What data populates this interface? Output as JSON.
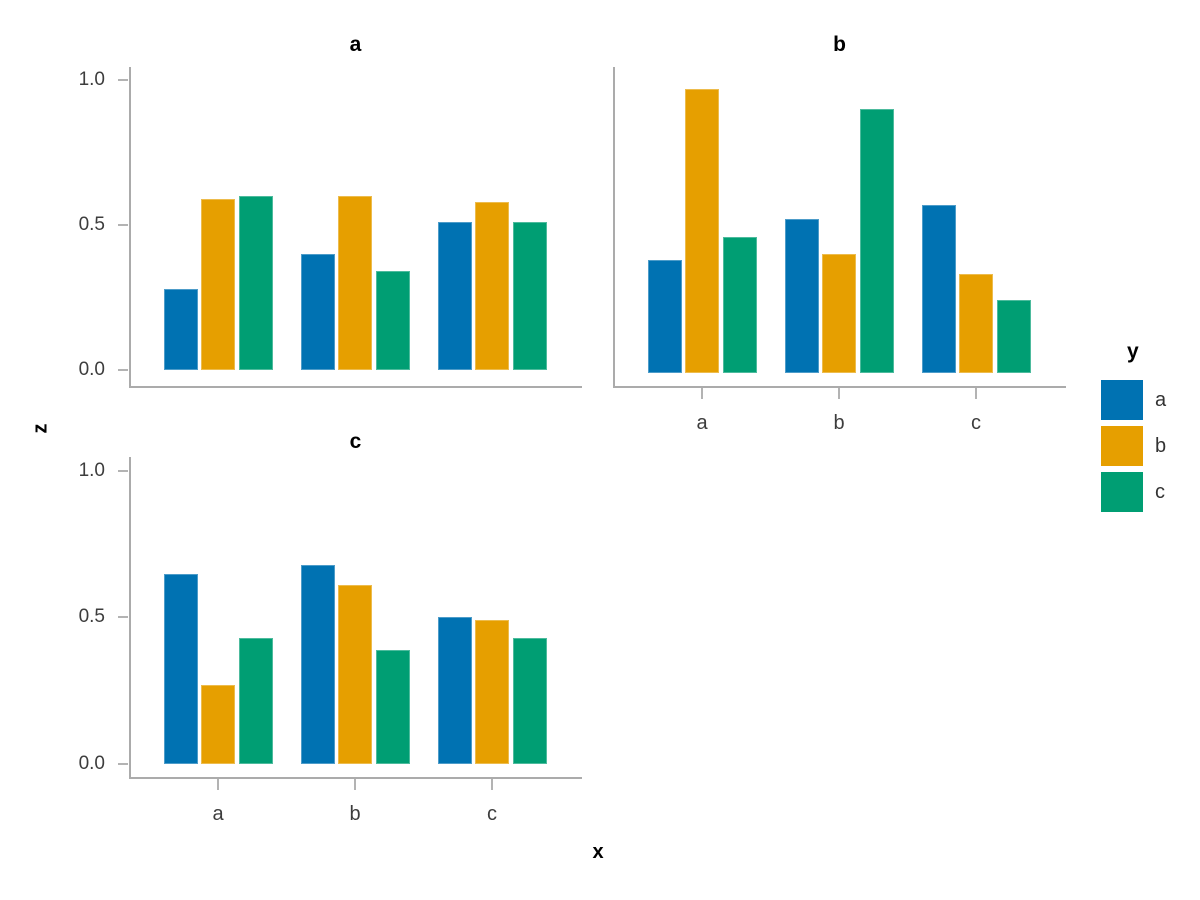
{
  "chart_data": {
    "type": "bar",
    "title": "",
    "xlabel": "x",
    "ylabel": "z",
    "legend_title": "y",
    "legend_position": "right",
    "grid": false,
    "categories": [
      "a",
      "b",
      "c"
    ],
    "ylim": [
      0,
      1
    ],
    "yticks": [
      0.0,
      0.5,
      1.0
    ],
    "ytick_labels": [
      "0.0",
      "0.5",
      "1.0"
    ],
    "series_colors": {
      "a": "#0072B2",
      "b": "#E69F00",
      "c": "#009E73"
    },
    "axis_color": "#ababab",
    "facets": [
      {
        "title": "a",
        "series": [
          {
            "name": "a",
            "values": [
              0.28,
              0.4,
              0.51
            ]
          },
          {
            "name": "b",
            "values": [
              0.59,
              0.6,
              0.58
            ]
          },
          {
            "name": "c",
            "values": [
              0.6,
              0.34,
              0.51
            ]
          }
        ]
      },
      {
        "title": "b",
        "series": [
          {
            "name": "a",
            "values": [
              0.39,
              0.53,
              0.58
            ]
          },
          {
            "name": "b",
            "values": [
              0.98,
              0.41,
              0.34
            ]
          },
          {
            "name": "c",
            "values": [
              0.47,
              0.91,
              0.25
            ]
          }
        ]
      },
      {
        "title": "c",
        "series": [
          {
            "name": "a",
            "values": [
              0.65,
              0.68,
              0.5
            ]
          },
          {
            "name": "b",
            "values": [
              0.27,
              0.61,
              0.49
            ]
          },
          {
            "name": "c",
            "values": [
              0.43,
              0.39,
              0.43
            ]
          }
        ]
      }
    ],
    "legend_entries": [
      "a",
      "b",
      "c"
    ]
  }
}
